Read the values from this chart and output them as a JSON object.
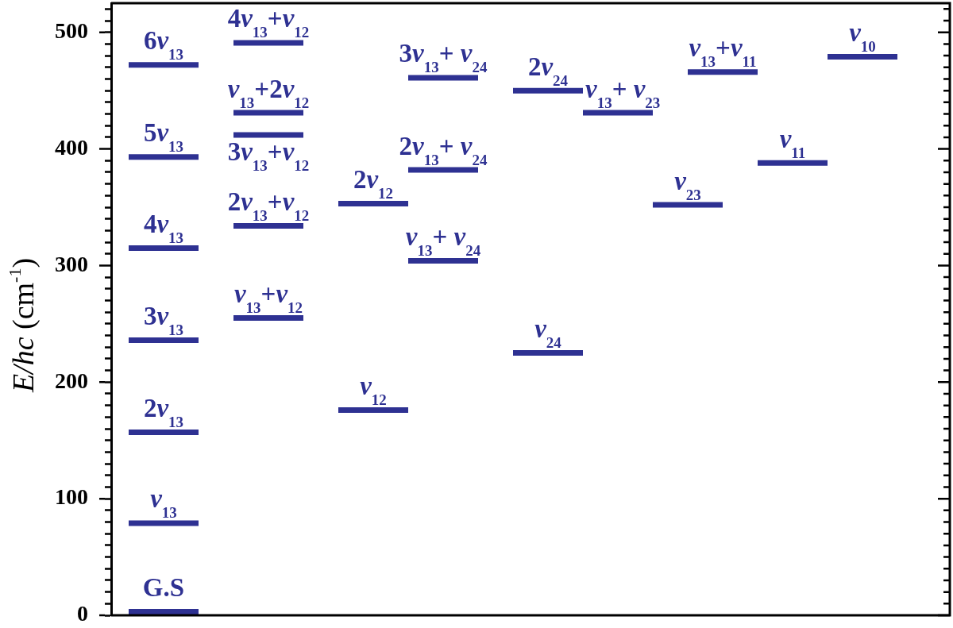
{
  "chart_data": {
    "type": "line",
    "ylabel": "E/hc (cm$^{-1}$)",
    "categories": [
      null,
      null,
      null,
      null,
      null,
      null,
      null,
      null,
      null,
      null,
      null,
      null,
      null,
      null,
      null,
      null,
      null,
      null,
      null,
      null,
      null,
      null,
      null,
      null
    ],
    "series": [
      {
        "name": "G.S",
        "color": "#2e3192",
        "values": [
          3,
          3,
          3,
          null,
          null,
          null,
          null,
          null,
          null,
          null,
          null,
          null,
          null,
          null,
          null,
          null,
          null,
          null,
          null,
          null,
          null,
          null,
          null,
          null
        ]
      },
      {
        "name": "v$_{13}$",
        "color": "#2e3192",
        "values": [
          79,
          79,
          79,
          null,
          null,
          null,
          null,
          null,
          null,
          null,
          null,
          null,
          null,
          null,
          null,
          null,
          null,
          null,
          null,
          null,
          null,
          null,
          null,
          null
        ]
      },
      {
        "name": "2v$_{13}$",
        "color": "#2e3192",
        "values": [
          157,
          157,
          157,
          null,
          null,
          null,
          null,
          null,
          null,
          null,
          null,
          null,
          null,
          null,
          null,
          null,
          null,
          null,
          null,
          null,
          null,
          null,
          null,
          null
        ]
      },
      {
        "name": "3v$_{13}$",
        "color": "#2e3192",
        "values": [
          236,
          236,
          236,
          null,
          null,
          null,
          null,
          null,
          null,
          null,
          null,
          null,
          null,
          null,
          null,
          null,
          null,
          null,
          null,
          null,
          null,
          null,
          null,
          null
        ]
      },
      {
        "name": "4v$_{13}$",
        "color": "#2e3192",
        "values": [
          315,
          315,
          315,
          null,
          null,
          null,
          null,
          null,
          null,
          null,
          null,
          null,
          null,
          null,
          null,
          null,
          null,
          null,
          null,
          null,
          null,
          null,
          null,
          null
        ]
      },
      {
        "name": "5v$_{13}$",
        "color": "#2e3192",
        "values": [
          393,
          393,
          393,
          null,
          null,
          null,
          null,
          null,
          null,
          null,
          null,
          null,
          null,
          null,
          null,
          null,
          null,
          null,
          null,
          null,
          null,
          null,
          null,
          null
        ]
      },
      {
        "name": "6v$_{13}$",
        "color": "#2e3192",
        "values": [
          472,
          472,
          472,
          null,
          null,
          null,
          null,
          null,
          null,
          null,
          null,
          null,
          null,
          null,
          null,
          null,
          null,
          null,
          null,
          null,
          null,
          null,
          null,
          null
        ]
      },
      {
        "name": "v$_{13}$+v$_{12}$",
        "color": "#2e3192",
        "values": [
          null,
          null,
          null,
          255,
          255,
          255,
          null,
          null,
          null,
          null,
          null,
          null,
          null,
          null,
          null,
          null,
          null,
          null,
          null,
          null,
          null,
          null,
          null,
          null
        ]
      },
      {
        "name": "2v$_{13}$+v$_{12}$",
        "color": "#2e3192",
        "values": [
          null,
          null,
          null,
          334,
          334,
          334,
          null,
          null,
          null,
          null,
          null,
          null,
          null,
          null,
          null,
          null,
          null,
          null,
          null,
          null,
          null,
          null,
          null,
          null
        ]
      },
      {
        "name": "3v$_{13}$+v$_{12}$",
        "color": "#2e3192",
        "values": [
          null,
          null,
          null,
          412,
          412,
          412,
          null,
          null,
          null,
          null,
          null,
          null,
          null,
          null,
          null,
          null,
          null,
          null,
          null,
          null,
          null,
          null,
          null,
          null
        ]
      },
      {
        "name": "v$_{13}$+2v$_{12}$",
        "color": "#2e3192",
        "values": [
          null,
          null,
          null,
          431,
          431,
          431,
          null,
          null,
          null,
          null,
          null,
          null,
          null,
          null,
          null,
          null,
          null,
          null,
          null,
          null,
          null,
          null,
          null,
          null
        ]
      },
      {
        "name": "4v$_{13}$+v$_{12}$",
        "color": "#2e3192",
        "values": [
          null,
          null,
          null,
          491,
          491,
          491,
          null,
          null,
          null,
          null,
          null,
          null,
          null,
          null,
          null,
          null,
          null,
          null,
          null,
          null,
          null,
          null,
          null,
          null
        ]
      },
      {
        "name": "v$_{12}$",
        "color": "#2e3192",
        "values": [
          null,
          null,
          null,
          null,
          null,
          null,
          176,
          176,
          176,
          null,
          null,
          null,
          null,
          null,
          null,
          null,
          null,
          null,
          null,
          null,
          null,
          null,
          null,
          null
        ]
      },
      {
        "name": "2v$_{12}$",
        "color": "#2e3192",
        "values": [
          null,
          null,
          null,
          null,
          null,
          null,
          353,
          353,
          353,
          null,
          null,
          null,
          null,
          null,
          null,
          null,
          null,
          null,
          null,
          null,
          null,
          null,
          null,
          null
        ]
      },
      {
        "name": "v$_{13}$+ v$_{24}$",
        "color": "#2e3192",
        "values": [
          null,
          null,
          null,
          null,
          null,
          null,
          null,
          null,
          304,
          304,
          304,
          null,
          null,
          null,
          null,
          null,
          null,
          null,
          null,
          null,
          null,
          null,
          null,
          null
        ]
      },
      {
        "name": "2v$_{13}$+ v$_{24}$",
        "color": "#2e3192",
        "values": [
          null,
          null,
          null,
          null,
          null,
          null,
          null,
          null,
          382,
          382,
          382,
          null,
          null,
          null,
          null,
          null,
          null,
          null,
          null,
          null,
          null,
          null,
          null,
          null
        ]
      },
      {
        "name": "3v$_{13}$+ v$_{24}$",
        "color": "#2e3192",
        "values": [
          null,
          null,
          null,
          null,
          null,
          null,
          null,
          null,
          461,
          461,
          461,
          null,
          null,
          null,
          null,
          null,
          null,
          null,
          null,
          null,
          null,
          null,
          null,
          null
        ]
      },
      {
        "name": "v$_{24}$",
        "color": "#2e3192",
        "values": [
          null,
          null,
          null,
          null,
          null,
          null,
          null,
          null,
          null,
          null,
          null,
          225,
          225,
          225,
          null,
          null,
          null,
          null,
          null,
          null,
          null,
          null,
          null,
          null
        ]
      },
      {
        "name": "2v$_{24}$",
        "color": "#2e3192",
        "values": [
          null,
          null,
          null,
          null,
          null,
          null,
          null,
          null,
          null,
          null,
          null,
          450,
          450,
          450,
          null,
          null,
          null,
          null,
          null,
          null,
          null,
          null,
          null,
          null
        ]
      },
      {
        "name": "v$_{13}$+ v$_{23}$",
        "color": "#2e3192",
        "values": [
          null,
          null,
          null,
          null,
          null,
          null,
          null,
          null,
          null,
          null,
          null,
          null,
          null,
          431,
          431,
          431,
          null,
          null,
          null,
          null,
          null,
          null,
          null,
          null
        ]
      },
      {
        "name": "v$_{23}$",
        "color": "#2e3192",
        "values": [
          null,
          null,
          null,
          null,
          null,
          null,
          null,
          null,
          null,
          null,
          null,
          null,
          null,
          null,
          null,
          352,
          352,
          352,
          null,
          null,
          null,
          null,
          null,
          null
        ]
      },
      {
        "name": "v$_{13}$+v$_{11}$",
        "color": "#2e3192",
        "values": [
          null,
          null,
          null,
          null,
          null,
          null,
          null,
          null,
          null,
          null,
          null,
          null,
          null,
          null,
          null,
          null,
          466,
          466,
          466,
          null,
          null,
          null,
          null,
          null
        ]
      },
      {
        "name": "v$_{11}$",
        "color": "#2e3192",
        "values": [
          null,
          null,
          null,
          null,
          null,
          null,
          null,
          null,
          null,
          null,
          null,
          null,
          null,
          null,
          null,
          null,
          null,
          null,
          388,
          388,
          388,
          null,
          null,
          null
        ]
      },
      {
        "name": "v$_{10}$",
        "color": "#2e3192",
        "values": [
          null,
          null,
          null,
          null,
          null,
          null,
          null,
          null,
          null,
          null,
          null,
          null,
          null,
          null,
          null,
          null,
          null,
          null,
          null,
          null,
          479,
          479,
          479,
          null
        ]
      }
    ],
    "ylim": [
      0,
      525
    ],
    "yticks": [
      0,
      {
        "value": 10,
        "label": null
      },
      {
        "value": 20,
        "label": null
      },
      {
        "value": 30,
        "label": null
      },
      {
        "value": 40,
        "label": null
      },
      {
        "value": 50,
        "label": null
      },
      {
        "value": 60,
        "label": null
      },
      {
        "value": 70,
        "label": null
      },
      {
        "value": 80,
        "label": null
      },
      {
        "value": 90,
        "label": null
      },
      100,
      {
        "value": 110,
        "label": null
      },
      {
        "value": 120,
        "label": null
      },
      {
        "value": 130,
        "label": null
      },
      {
        "value": 140,
        "label": null
      },
      {
        "value": 150,
        "label": null
      },
      {
        "value": 160,
        "label": null
      },
      {
        "value": 170,
        "label": null
      },
      {
        "value": 180,
        "label": null
      },
      {
        "value": 190,
        "label": null
      },
      200,
      {
        "value": 210,
        "label": null
      },
      {
        "value": 220,
        "label": null
      },
      {
        "value": 230,
        "label": null
      },
      {
        "value": 240,
        "label": null
      },
      {
        "value": 250,
        "label": null
      },
      {
        "value": 260,
        "label": null
      },
      {
        "value": 270,
        "label": null
      },
      {
        "value": 280,
        "label": null
      },
      {
        "value": 290,
        "label": null
      },
      300,
      {
        "value": 310,
        "label": null
      },
      {
        "value": 320,
        "label": null
      },
      {
        "value": 330,
        "label": null
      },
      {
        "value": 340,
        "label": null
      },
      {
        "value": 350,
        "label": null
      },
      {
        "value": 360,
        "label": null
      },
      {
        "value": 370,
        "label": null
      },
      {
        "value": 380,
        "label": null
      },
      {
        "value": 390,
        "label": null
      },
      400,
      {
        "value": 410,
        "label": null
      },
      {
        "value": 420,
        "label": null
      },
      {
        "value": 430,
        "label": null
      },
      {
        "value": 440,
        "label": null
      },
      {
        "value": 450,
        "label": null
      },
      {
        "value": 460,
        "label": null
      },
      {
        "value": 470,
        "label": null
      },
      {
        "value": 480,
        "label": null
      },
      {
        "value": 490,
        "label": null
      },
      500,
      {
        "value": 510,
        "label": null
      },
      {
        "value": 520,
        "label": null
      }
    ],
    "tick_labels": "y",
    "legend": false,
    "grid": false
  }
}
